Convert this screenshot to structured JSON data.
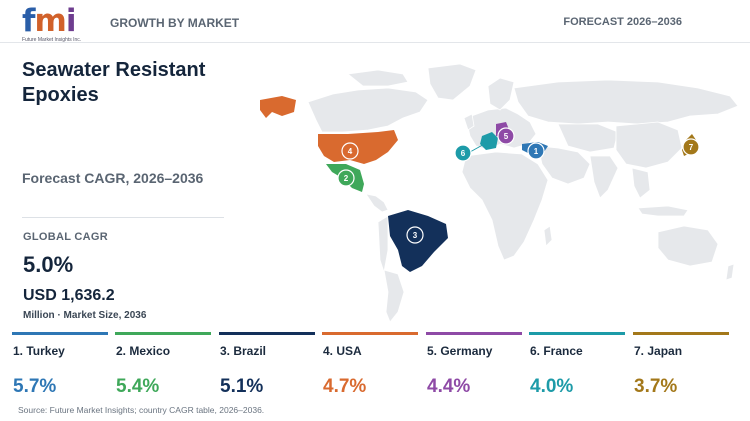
{
  "header": {
    "logo_text": "fmi",
    "logo_subtext": "Future Market Insights Inc.",
    "section_label": "GROWTH BY MARKET",
    "forecast_label": "FORECAST 2026–2036"
  },
  "summary": {
    "title": "Seawater Resistant Epoxies",
    "subtitle": "Forecast CAGR, 2026–2036",
    "global_cagr_label": "GLOBAL CAGR",
    "global_cagr_value": "5.0%",
    "market_size_value": "USD 1,636.2",
    "market_size_unit": "Million · Market Size, 2036"
  },
  "map": {
    "land_color": "#e6e8eb",
    "markers": [
      {
        "rank": "1",
        "country": "Turkey",
        "color": "#2e77b5"
      },
      {
        "rank": "2",
        "country": "Mexico",
        "color": "#3fa85a"
      },
      {
        "rank": "3",
        "country": "Brazil",
        "color": "#13305a"
      },
      {
        "rank": "4",
        "country": "USA",
        "color": "#d96a2f"
      },
      {
        "rank": "5",
        "country": "Germany",
        "color": "#8e4aa6"
      },
      {
        "rank": "6",
        "country": "France",
        "color": "#1d9ba8"
      },
      {
        "rank": "7",
        "country": "Japan",
        "color": "#a3781a"
      }
    ]
  },
  "countries": [
    {
      "label": "1. Turkey",
      "value": "5.7%",
      "color": "#2e77b5"
    },
    {
      "label": "2. Mexico",
      "value": "5.4%",
      "color": "#3fa85a"
    },
    {
      "label": "3. Brazil",
      "value": "5.1%",
      "color": "#13305a"
    },
    {
      "label": "4. USA",
      "value": "4.7%",
      "color": "#d96a2f"
    },
    {
      "label": "5. Germany",
      "value": "4.4%",
      "color": "#8e4aa6"
    },
    {
      "label": "6. France",
      "value": "4.0%",
      "color": "#1d9ba8"
    },
    {
      "label": "7. Japan",
      "value": "3.7%",
      "color": "#a3781a"
    }
  ],
  "source": "Source: Future Market Insights; country CAGR table, 2026–2036."
}
